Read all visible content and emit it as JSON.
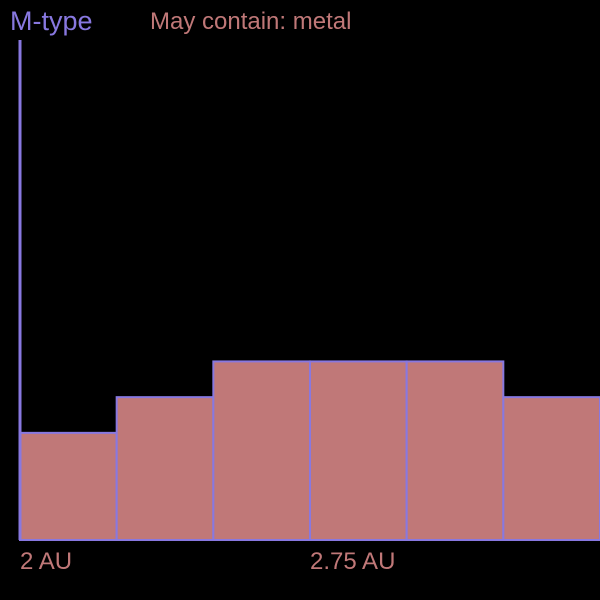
{
  "chart_data": {
    "type": "histogram",
    "title": "M-type",
    "subtitle": "May contain: metal",
    "xlabel": "",
    "ylabel": "",
    "x_tick_labels": [
      {
        "value": 2.0,
        "label": "2 AU"
      },
      {
        "value": 2.75,
        "label": "2.75 AU"
      }
    ],
    "bins": [
      {
        "x0": 2.0,
        "x1": 2.25,
        "value": 30
      },
      {
        "x0": 2.25,
        "x1": 2.5,
        "value": 40
      },
      {
        "x0": 2.5,
        "x1": 2.75,
        "value": 50
      },
      {
        "x0": 2.75,
        "x1": 3.0,
        "value": 50
      },
      {
        "x0": 3.0,
        "x1": 3.25,
        "value": 50
      },
      {
        "x0": 3.25,
        "x1": 3.5,
        "value": 40
      }
    ],
    "xlim": [
      2.0,
      3.5
    ],
    "ylim": [
      0,
      140
    ],
    "grid": false,
    "colors": {
      "background": "#000000",
      "bar_fill": "#c07878",
      "bar_stroke": "#8878e0",
      "axis": "#8878e0",
      "title": "#8878e0",
      "subtitle": "#c07878",
      "tick_label": "#c07878"
    }
  }
}
